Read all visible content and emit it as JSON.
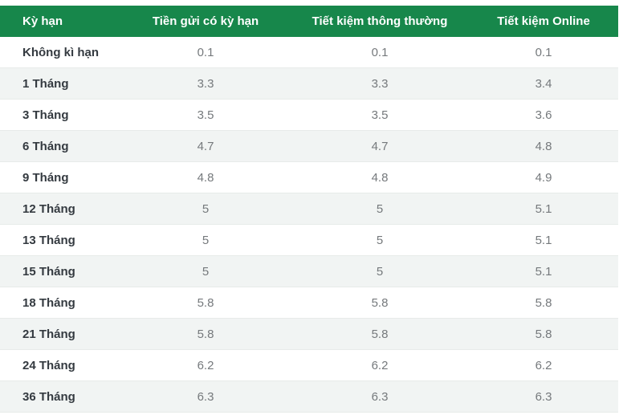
{
  "colors": {
    "header_bg": "#17874b",
    "header_text": "#ffffff",
    "stripe_bg": "#f1f4f3",
    "row_bg": "#ffffff",
    "row_border": "#e7ebe9",
    "term_text": "#343a40",
    "value_text": "#75797c"
  },
  "table": {
    "columns": [
      "Kỳ hạn",
      "Tiền gửi có kỳ hạn",
      "Tiết kiệm thông thường",
      "Tiết kiệm Online"
    ],
    "rows": [
      {
        "term": "Không kì hạn",
        "values": [
          "0.1",
          "0.1",
          "0.1"
        ]
      },
      {
        "term": "1 Tháng",
        "values": [
          "3.3",
          "3.3",
          "3.4"
        ]
      },
      {
        "term": "3 Tháng",
        "values": [
          "3.5",
          "3.5",
          "3.6"
        ]
      },
      {
        "term": "6 Tháng",
        "values": [
          "4.7",
          "4.7",
          "4.8"
        ]
      },
      {
        "term": "9 Tháng",
        "values": [
          "4.8",
          "4.8",
          "4.9"
        ]
      },
      {
        "term": "12 Tháng",
        "values": [
          "5",
          "5",
          "5.1"
        ]
      },
      {
        "term": "13 Tháng",
        "values": [
          "5",
          "5",
          "5.1"
        ]
      },
      {
        "term": "15 Tháng",
        "values": [
          "5",
          "5",
          "5.1"
        ]
      },
      {
        "term": "18 Tháng",
        "values": [
          "5.8",
          "5.8",
          "5.8"
        ]
      },
      {
        "term": "21 Tháng",
        "values": [
          "5.8",
          "5.8",
          "5.8"
        ]
      },
      {
        "term": "24 Tháng",
        "values": [
          "6.2",
          "6.2",
          "6.2"
        ]
      },
      {
        "term": "36 Tháng",
        "values": [
          "6.3",
          "6.3",
          "6.3"
        ]
      }
    ]
  },
  "chart_data": {
    "type": "table",
    "title": "",
    "columns": [
      "Kỳ hạn",
      "Tiền gửi có kỳ hạn",
      "Tiết kiệm thông thường",
      "Tiết kiệm Online"
    ],
    "rows": [
      [
        "Không kì hạn",
        0.1,
        0.1,
        0.1
      ],
      [
        "1 Tháng",
        3.3,
        3.3,
        3.4
      ],
      [
        "3 Tháng",
        3.5,
        3.5,
        3.6
      ],
      [
        "6 Tháng",
        4.7,
        4.7,
        4.8
      ],
      [
        "9 Tháng",
        4.8,
        4.8,
        4.9
      ],
      [
        "12 Tháng",
        5,
        5,
        5.1
      ],
      [
        "13 Tháng",
        5,
        5,
        5.1
      ],
      [
        "15 Tháng",
        5,
        5,
        5.1
      ],
      [
        "18 Tháng",
        5.8,
        5.8,
        5.8
      ],
      [
        "21 Tháng",
        5.8,
        5.8,
        5.8
      ],
      [
        "24 Tháng",
        6.2,
        6.2,
        6.2
      ],
      [
        "36 Tháng",
        6.3,
        6.3,
        6.3
      ]
    ],
    "layout": {
      "header_position": "top",
      "first_column_align": "left",
      "value_columns_align": "center",
      "zebra_striping": true
    }
  }
}
